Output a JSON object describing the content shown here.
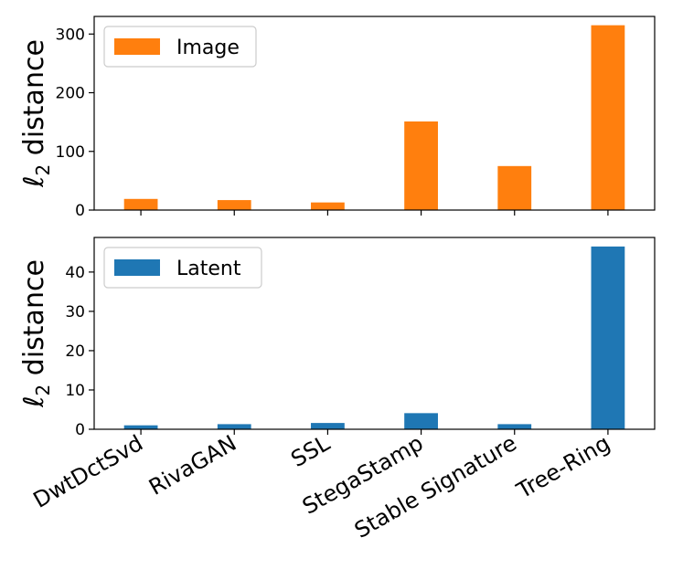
{
  "chart_data": [
    {
      "type": "bar",
      "categories": [
        "DwtDctSvd",
        "RivaGAN",
        "SSL",
        "StegaStamp",
        "Stable Signature",
        "Tree-Ring"
      ],
      "series": [
        {
          "name": "Image",
          "values": [
            19,
            17,
            13,
            151,
            75,
            315
          ],
          "color": "#ff7f0e"
        }
      ],
      "ylabel_main": "ℓ",
      "ylabel_sub": "2",
      "ylabel_rest": " distance",
      "yticks": [
        "0",
        "100",
        "200",
        "300"
      ],
      "ylim": [
        0,
        330
      ],
      "grid": false,
      "legend": "top-left"
    },
    {
      "type": "bar",
      "categories": [
        "DwtDctSvd",
        "RivaGAN",
        "SSL",
        "StegaStamp",
        "Stable Signature",
        "Tree-Ring"
      ],
      "series": [
        {
          "name": "Latent",
          "values": [
            1.0,
            1.3,
            1.6,
            4.1,
            1.3,
            46.5
          ],
          "color": "#1f77b4"
        }
      ],
      "ylabel_main": "ℓ",
      "ylabel_sub": "2",
      "ylabel_rest": " distance",
      "yticks": [
        "0",
        "10",
        "20",
        "30",
        "40"
      ],
      "ylim": [
        0,
        48.8
      ],
      "grid": false,
      "legend": "top-left"
    }
  ]
}
